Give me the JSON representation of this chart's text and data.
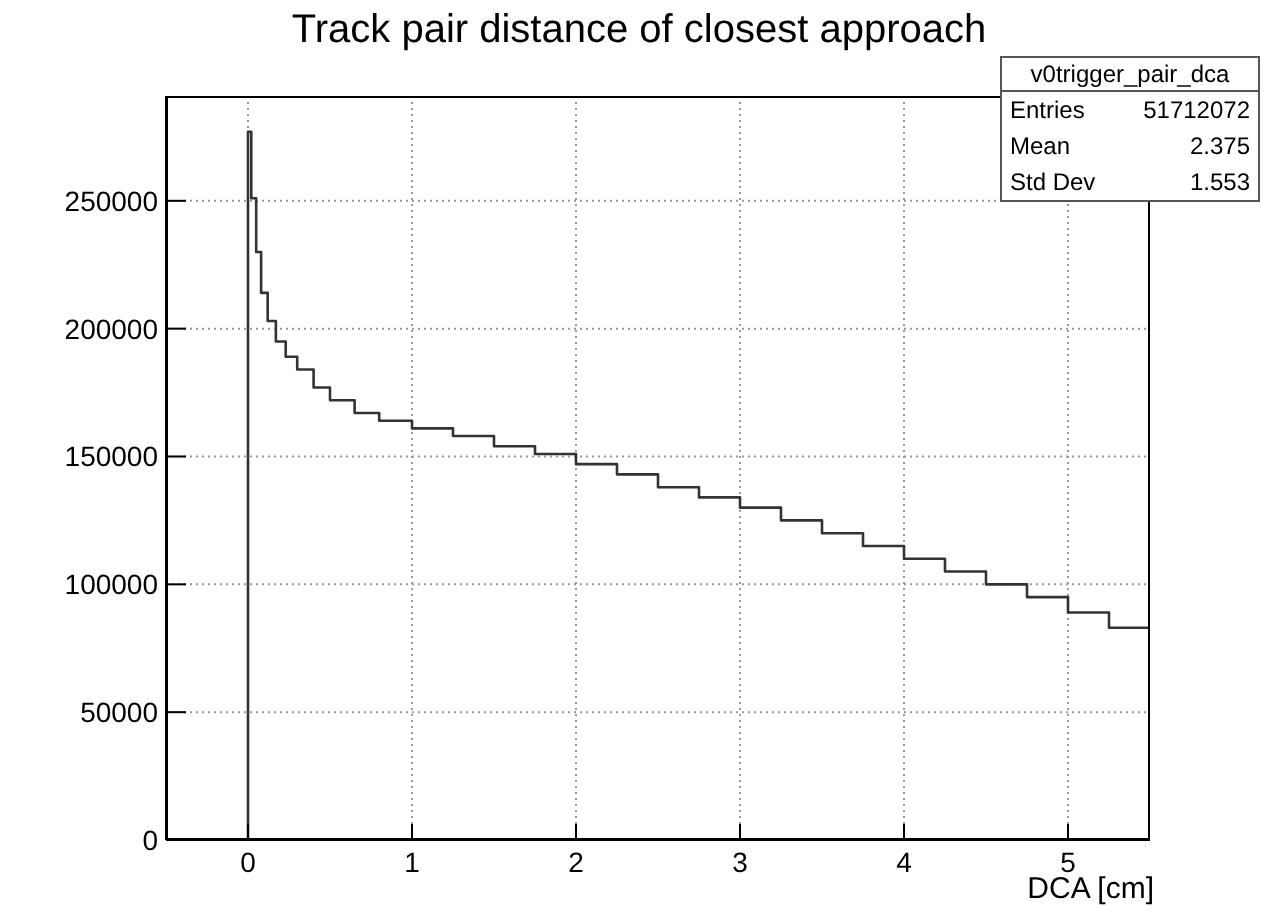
{
  "chart_data": {
    "type": "histogram",
    "title": "Track pair distance of closest approach",
    "xlabel": "DCA [cm]",
    "bins": [
      -0.5,
      0,
      0.02,
      0.05,
      0.08,
      0.12,
      0.17,
      0.23,
      0.3,
      0.4,
      0.5,
      0.65,
      0.8,
      1.0,
      1.25,
      1.5,
      1.75,
      2.0,
      2.25,
      2.5,
      2.75,
      3.0,
      3.25,
      3.5,
      3.75,
      4.0,
      4.25,
      4.5,
      4.75,
      5.0,
      5.25,
      5.5
    ],
    "values": [
      0,
      277000,
      251000,
      230000,
      214000,
      203000,
      195000,
      189000,
      184000,
      177000,
      172000,
      167000,
      164000,
      161000,
      158000,
      154000,
      151000,
      147000,
      143000,
      138000,
      134000,
      130000,
      125000,
      120000,
      115000,
      110000,
      105000,
      100000,
      95000,
      89000,
      83000
    ],
    "color": "#333333",
    "xlim": [
      -0.5,
      5.5
    ],
    "xticks": [
      0,
      1,
      2,
      3,
      4,
      5
    ],
    "ylim": [
      0,
      291000
    ],
    "yticks": [
      0,
      50000,
      100000,
      150000,
      200000,
      250000
    ],
    "grid": true,
    "annotations": [
      "v0trigger_pair_dca",
      "Entries",
      "51712072",
      "Mean",
      "2.375",
      "Std Dev",
      "1.553"
    ]
  }
}
